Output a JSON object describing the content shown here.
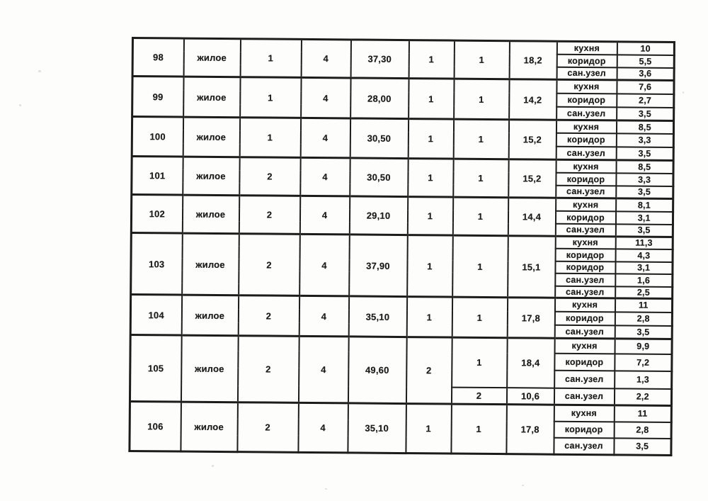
{
  "document": {
    "kind": "scanned apartment area table (Russian)",
    "language": "ru"
  },
  "colors": {
    "ink": "#1c1c1c",
    "paper": "#fdfdfc"
  },
  "aux_room_labels": [
    "кухня",
    "коридор",
    "сан.узел"
  ],
  "table": {
    "columns_visible": 10,
    "rows": [
      {
        "id": "98",
        "purpose": "жилое",
        "col3": "1",
        "col4": "4",
        "total_area": "37,30",
        "col6": "1",
        "parts": [
          {
            "col7": "1",
            "area": "18,2",
            "rooms": [
              {
                "name": "кухня",
                "area": "10"
              },
              {
                "name": "коридор",
                "area": "5,5"
              },
              {
                "name": "сан.узел",
                "area": "3,6"
              }
            ]
          }
        ]
      },
      {
        "id": "99",
        "purpose": "жилое",
        "col3": "1",
        "col4": "4",
        "total_area": "28,00",
        "col6": "1",
        "parts": [
          {
            "col7": "1",
            "area": "14,2",
            "rooms": [
              {
                "name": "кухня",
                "area": "7,6"
              },
              {
                "name": "коридор",
                "area": "2,7"
              },
              {
                "name": "сан.узел",
                "area": "3,5"
              }
            ]
          }
        ]
      },
      {
        "id": "100",
        "purpose": "жилое",
        "col3": "1",
        "col4": "4",
        "total_area": "30,50",
        "col6": "1",
        "parts": [
          {
            "col7": "1",
            "area": "15,2",
            "rooms": [
              {
                "name": "кухня",
                "area": "8,5"
              },
              {
                "name": "коридор",
                "area": "3,3"
              },
              {
                "name": "сан.узел",
                "area": "3,5"
              }
            ]
          }
        ]
      },
      {
        "id": "101",
        "purpose": "жилое",
        "col3": "2",
        "col4": "4",
        "total_area": "30,50",
        "col6": "1",
        "parts": [
          {
            "col7": "1",
            "area": "15,2",
            "rooms": [
              {
                "name": "кухня",
                "area": "8,5"
              },
              {
                "name": "коридор",
                "area": "3,3"
              },
              {
                "name": "сан.узел",
                "area": "3,5"
              }
            ]
          }
        ]
      },
      {
        "id": "102",
        "purpose": "жилое",
        "col3": "2",
        "col4": "4",
        "total_area": "29,10",
        "col6": "1",
        "parts": [
          {
            "col7": "1",
            "area": "14,4",
            "rooms": [
              {
                "name": "кухня",
                "area": "8,1"
              },
              {
                "name": "коридор",
                "area": "3,1"
              },
              {
                "name": "сан.узел",
                "area": "3,5"
              }
            ]
          }
        ]
      },
      {
        "id": "103",
        "purpose": "жилое",
        "col3": "2",
        "col4": "4",
        "total_area": "37,90",
        "col6": "1",
        "parts": [
          {
            "col7": "1",
            "area": "15,1",
            "rooms": [
              {
                "name": "кухня",
                "area": "11,3"
              },
              {
                "name": "коридор",
                "area": "4,3"
              },
              {
                "name": "коридор",
                "area": "3,1"
              },
              {
                "name": "сан.узел",
                "area": "1,6"
              },
              {
                "name": "сан.узел",
                "area": "2,5"
              }
            ]
          }
        ]
      },
      {
        "id": "104",
        "purpose": "жилое",
        "col3": "2",
        "col4": "4",
        "total_area": "35,10",
        "col6": "1",
        "parts": [
          {
            "col7": "1",
            "area": "17,8",
            "rooms": [
              {
                "name": "кухня",
                "area": "11"
              },
              {
                "name": "коридор",
                "area": "2,8"
              },
              {
                "name": "сан.узел",
                "area": "3,5"
              }
            ]
          }
        ]
      },
      {
        "id": "105",
        "purpose": "жилое",
        "col3": "2",
        "col4": "4",
        "total_area": "49,60",
        "col6": "2",
        "parts": [
          {
            "col7": "1",
            "area": "18,4",
            "rooms": [
              {
                "name": "кухня",
                "area": "9,9"
              },
              {
                "name": "коридор",
                "area": "7,2"
              },
              {
                "name": "сан.узел",
                "area": "1,3"
              }
            ]
          },
          {
            "col7": "2",
            "area": "10,6",
            "rooms": [
              {
                "name": "сан.узел",
                "area": "2,2"
              }
            ]
          }
        ]
      },
      {
        "id": "106",
        "purpose": "жилое",
        "col3": "2",
        "col4": "4",
        "total_area": "35,10",
        "col6": "1",
        "parts": [
          {
            "col7": "1",
            "area": "17,8",
            "rooms": [
              {
                "name": "кухня",
                "area": "11"
              },
              {
                "name": "коридор",
                "area": "2,8"
              },
              {
                "name": "сан.узел",
                "area": "3,5"
              }
            ]
          }
        ]
      }
    ]
  }
}
